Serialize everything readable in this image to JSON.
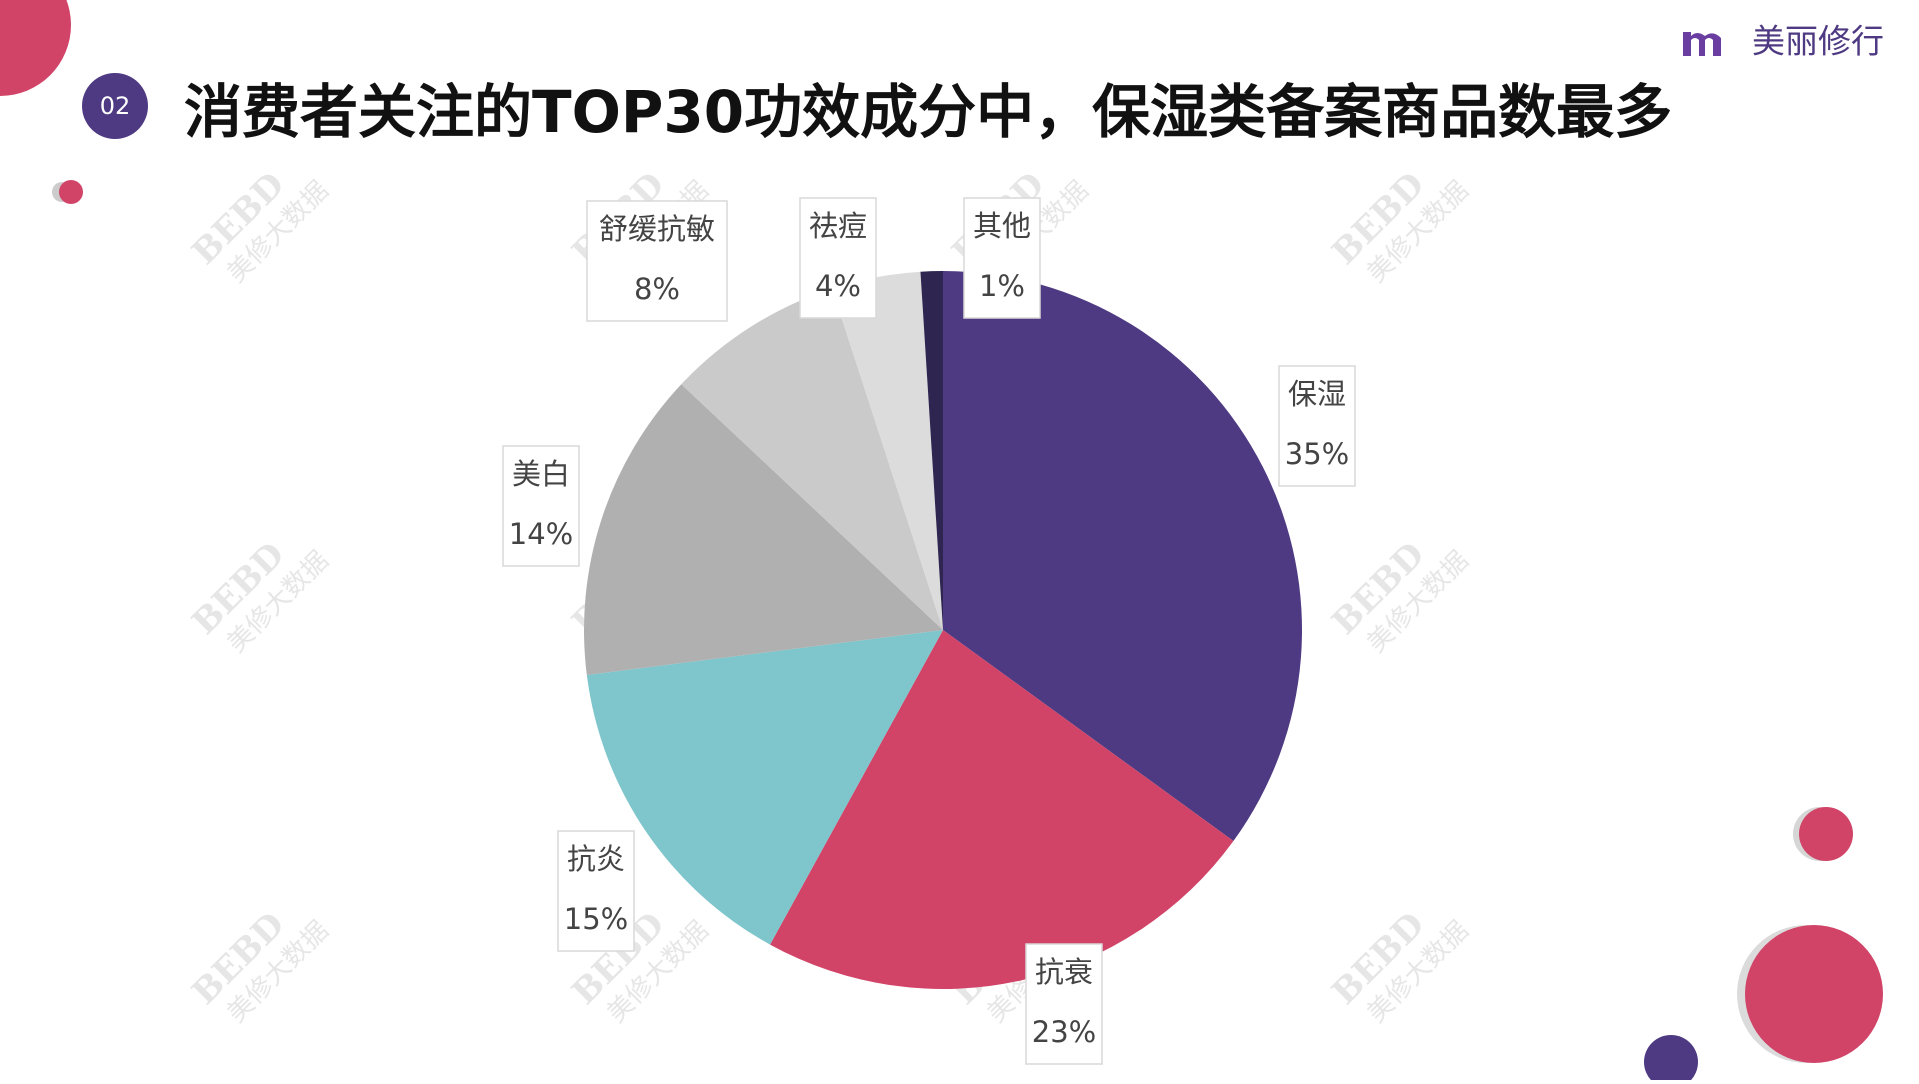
{
  "badge": "02",
  "brand": "美丽修行",
  "watermark": [
    "BEBD",
    "美修大数据"
  ],
  "chart_data": {
    "type": "pie",
    "title": "消费者关注的TOP30功效成分中，保湿类备案商品数最多",
    "categories": [
      "保湿",
      "抗衰",
      "抗炎",
      "美白",
      "舒缓抗敏",
      "祛痘",
      "其他"
    ],
    "values": [
      35,
      23,
      15,
      14,
      8,
      4,
      1
    ],
    "value_labels": [
      "35%",
      "23%",
      "15%",
      "14%",
      "8%",
      "4%",
      "1%"
    ],
    "colors": [
      "#4e3a82",
      "#d14468",
      "#7ec6cc",
      "#b0b0b0",
      "#cacaca",
      "#dcdcdc",
      "#2e2550"
    ]
  }
}
